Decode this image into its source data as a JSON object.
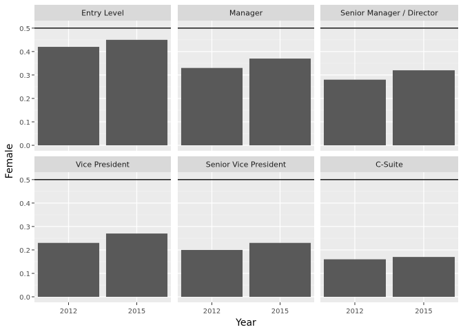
{
  "chart_data": {
    "type": "bar",
    "facet_layout": "3 columns x 2 rows",
    "xlabel": "Year",
    "ylabel": "Female",
    "categories": [
      "2012",
      "2015"
    ],
    "ylim": [
      0,
      0.52
    ],
    "yticks": [
      0.0,
      0.1,
      0.2,
      0.3,
      0.4,
      0.5
    ],
    "ytick_labels": [
      "0.0",
      "0.1",
      "0.2",
      "0.3",
      "0.4",
      "0.5"
    ],
    "reference_line": 0.5,
    "grid": true,
    "panel_background": "#ebebeb",
    "strip_background": "#d9d9d9",
    "bar_color": "#595959",
    "reference_line_color": "#000000",
    "panels": [
      {
        "title": "Entry Level",
        "values": [
          0.42,
          0.45
        ]
      },
      {
        "title": "Manager",
        "values": [
          0.33,
          0.37
        ]
      },
      {
        "title": "Senior Manager / Director",
        "values": [
          0.28,
          0.32
        ]
      },
      {
        "title": "Vice President",
        "values": [
          0.23,
          0.27
        ]
      },
      {
        "title": "Senior Vice President",
        "values": [
          0.2,
          0.23
        ]
      },
      {
        "title": "C-Suite",
        "values": [
          0.16,
          0.17
        ]
      }
    ]
  }
}
